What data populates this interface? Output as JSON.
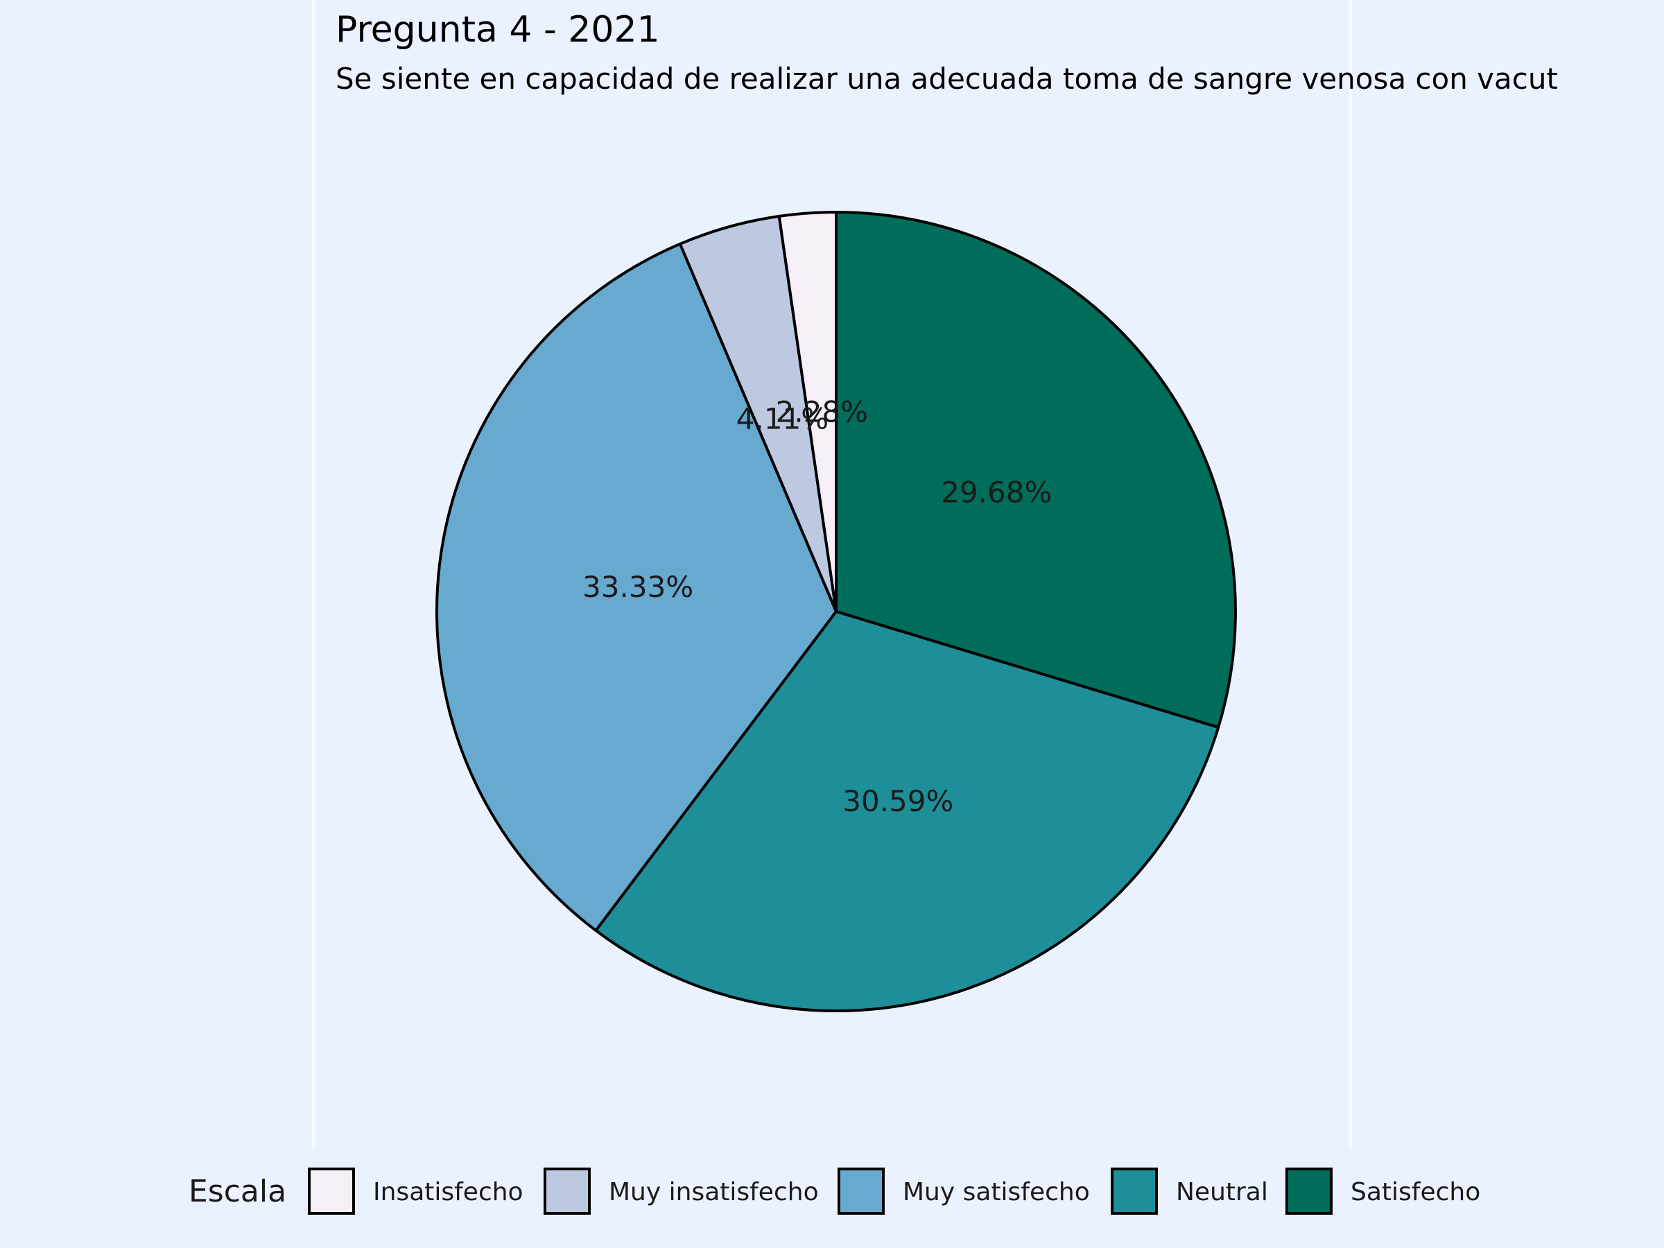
{
  "chart_data": {
    "type": "pie",
    "title": "Pregunta 4 - 2021",
    "subtitle": "Se siente en capacidad de realizar una adecuada toma de sangre venosa con vacut",
    "legend_title": "Escala",
    "legend_position": "bottom",
    "slices": [
      {
        "label": "Satisfecho",
        "value": 29.68,
        "text": "29.68%",
        "color": "#006d5b"
      },
      {
        "label": "Neutral",
        "value": 30.59,
        "text": "30.59%",
        "color": "#1e8f99"
      },
      {
        "label": "Muy satisfecho",
        "value": 33.33,
        "text": "33.33%",
        "color": "#67a9cf"
      },
      {
        "label": "Muy insatisfecho",
        "value": 4.11,
        "text": "4.11%",
        "color": "#bdc9e1"
      },
      {
        "label": "Insatisfecho",
        "value": 2.28,
        "text": "2.28%",
        "color": "#f6eff7"
      }
    ],
    "legend_order": [
      "Insatisfecho",
      "Muy insatisfecho",
      "Muy satisfecho",
      "Neutral",
      "Satisfecho"
    ]
  }
}
